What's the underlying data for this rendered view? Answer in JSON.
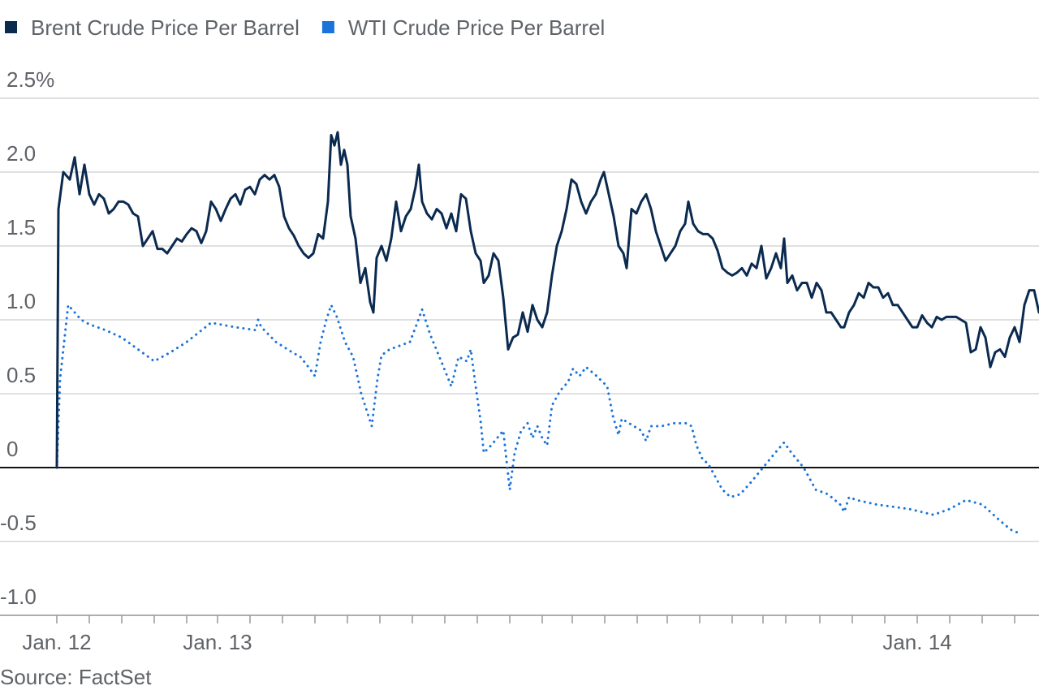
{
  "chart_data": {
    "type": "line",
    "source": "Source: FactSet",
    "grid": true,
    "legend": "top",
    "xlim": [
      70,
      1280
    ],
    "xticks": [
      {
        "value": 70,
        "label": "Jan. 12"
      },
      {
        "value": 268,
        "label": "Jan. 13"
      },
      {
        "value": 1130,
        "label": "Jan. 14"
      }
    ],
    "xminorticks": [
      110,
      150,
      190,
      230,
      308,
      348,
      388,
      428,
      468,
      508,
      548,
      588,
      628,
      668,
      705,
      745,
      785,
      822,
      862,
      902,
      940,
      968,
      1010,
      1050,
      1090,
      1170,
      1210,
      1250
    ],
    "ylim": [
      -1.0,
      2.5
    ],
    "yticks": [
      {
        "value": 2.5,
        "label": "2.5%"
      },
      {
        "value": 2.0,
        "label": "2.0"
      },
      {
        "value": 1.5,
        "label": "1.5"
      },
      {
        "value": 1.0,
        "label": "1.0"
      },
      {
        "value": 0.5,
        "label": "0.5"
      },
      0,
      {
        "value": -0.5,
        "label": "-0.5"
      },
      {
        "value": -1.0,
        "label": "-1.0"
      }
    ],
    "series": [
      {
        "name": "Brent Crude Price Per Barrel",
        "color": "#0b2a4f",
        "style": "solid",
        "x": [
          70,
          72,
          78,
          86,
          92,
          98,
          104,
          110,
          116,
          122,
          128,
          134,
          140,
          146,
          152,
          158,
          164,
          170,
          176,
          182,
          188,
          194,
          200,
          206,
          212,
          218,
          224,
          230,
          236,
          242,
          248,
          254,
          260,
          266,
          272,
          278,
          284,
          290,
          296,
          302,
          308,
          314,
          320,
          326,
          332,
          338,
          344,
          350,
          356,
          362,
          368,
          374,
          380,
          386,
          392,
          398,
          404,
          408,
          412,
          416,
          420,
          424,
          428,
          432,
          438,
          444,
          450,
          456,
          460,
          464,
          470,
          476,
          482,
          488,
          494,
          500,
          506,
          512,
          516,
          520,
          526,
          532,
          538,
          544,
          550,
          556,
          562,
          568,
          574,
          580,
          586,
          592,
          596,
          602,
          608,
          614,
          620,
          626,
          632,
          638,
          644,
          650,
          656,
          662,
          668,
          674,
          680,
          686,
          692,
          698,
          704,
          710,
          716,
          722,
          728,
          734,
          740,
          744,
          750,
          756,
          762,
          768,
          772,
          778,
          784,
          790,
          796,
          802,
          808,
          814,
          820,
          826,
          832,
          838,
          844,
          848,
          854,
          860,
          866,
          872,
          878,
          884,
          890,
          896,
          902,
          908,
          914,
          920,
          926,
          932,
          938,
          944,
          950,
          956,
          962,
          966,
          970,
          976,
          982,
          988,
          994,
          1000,
          1006,
          1012,
          1018,
          1024,
          1030,
          1036,
          1040,
          1046,
          1052,
          1058,
          1064,
          1070,
          1076,
          1082,
          1088,
          1094,
          1100,
          1106,
          1112,
          1118,
          1124,
          1130,
          1136,
          1142,
          1148,
          1154,
          1160,
          1166,
          1172,
          1178,
          1184,
          1190,
          1196,
          1202,
          1208,
          1214,
          1220,
          1226,
          1232,
          1238,
          1244,
          1250,
          1256,
          1262,
          1268,
          1274,
          1280
        ],
        "values": [
          0,
          1.75,
          2.0,
          1.95,
          2.1,
          1.85,
          2.05,
          1.85,
          1.78,
          1.85,
          1.82,
          1.72,
          1.75,
          1.8,
          1.8,
          1.78,
          1.72,
          1.7,
          1.5,
          1.55,
          1.6,
          1.48,
          1.48,
          1.45,
          1.5,
          1.55,
          1.53,
          1.58,
          1.62,
          1.6,
          1.52,
          1.6,
          1.8,
          1.75,
          1.67,
          1.75,
          1.82,
          1.85,
          1.78,
          1.88,
          1.9,
          1.85,
          1.95,
          1.98,
          1.95,
          1.98,
          1.9,
          1.7,
          1.62,
          1.57,
          1.5,
          1.45,
          1.42,
          1.45,
          1.58,
          1.55,
          1.8,
          2.25,
          2.18,
          2.27,
          2.05,
          2.15,
          2.05,
          1.7,
          1.55,
          1.25,
          1.35,
          1.12,
          1.05,
          1.42,
          1.5,
          1.4,
          1.55,
          1.8,
          1.6,
          1.7,
          1.75,
          1.9,
          2.05,
          1.8,
          1.72,
          1.68,
          1.75,
          1.72,
          1.62,
          1.72,
          1.6,
          1.85,
          1.82,
          1.6,
          1.45,
          1.4,
          1.25,
          1.3,
          1.45,
          1.4,
          1.15,
          0.8,
          0.88,
          0.9,
          1.05,
          0.92,
          1.1,
          1.0,
          0.95,
          1.05,
          1.3,
          1.5,
          1.6,
          1.75,
          1.95,
          1.92,
          1.8,
          1.72,
          1.8,
          1.85,
          1.95,
          2.0,
          1.85,
          1.7,
          1.5,
          1.45,
          1.35,
          1.75,
          1.72,
          1.8,
          1.85,
          1.75,
          1.6,
          1.5,
          1.4,
          1.45,
          1.5,
          1.6,
          1.65,
          1.8,
          1.65,
          1.6,
          1.58,
          1.58,
          1.55,
          1.47,
          1.35,
          1.32,
          1.3,
          1.32,
          1.35,
          1.3,
          1.38,
          1.35,
          1.5,
          1.28,
          1.35,
          1.45,
          1.35,
          1.55,
          1.25,
          1.3,
          1.2,
          1.25,
          1.25,
          1.15,
          1.25,
          1.2,
          1.05,
          1.05,
          1.0,
          0.95,
          0.95,
          1.05,
          1.1,
          1.18,
          1.15,
          1.25,
          1.22,
          1.22,
          1.15,
          1.18,
          1.1,
          1.1,
          1.05,
          1.0,
          0.95,
          0.95,
          1.03,
          0.98,
          0.95,
          1.02,
          1.0,
          1.02,
          1.02,
          1.02,
          1.0,
          0.98,
          0.78,
          0.8,
          0.95,
          0.88,
          0.68,
          0.78,
          0.8,
          0.75,
          0.88,
          0.95,
          0.85,
          1.1,
          1.2,
          1.2,
          1.05
        ]
      },
      {
        "name": "WTI Crude Price Per Barrel",
        "color": "#1a73d9",
        "style": "dotted",
        "x": [
          70,
          74,
          84,
          92,
          100,
          110,
          130,
          150,
          170,
          190,
          210,
          230,
          260,
          290,
          315,
          318,
          322,
          340,
          360,
          370,
          380,
          388,
          395,
          402,
          408,
          415,
          425,
          435,
          445,
          458,
          465,
          470,
          480,
          505,
          512,
          520,
          530,
          545,
          556,
          565,
          575,
          580,
          586,
          592,
          596,
          605,
          620,
          625,
          628,
          634,
          642,
          650,
          656,
          662,
          668,
          674,
          680,
          690,
          700,
          706,
          714,
          722,
          735,
          748,
          755,
          762,
          766,
          775,
          790,
          796,
          802,
          815,
          830,
          845,
          852,
          858,
          866,
          872,
          880,
          890,
          900,
          912,
          925,
          940,
          955,
          966,
          975,
          990,
          1005,
          1020,
          1035,
          1040,
          1046,
          1055,
          1080,
          1120,
          1150,
          1170,
          1190,
          1210,
          1230,
          1245,
          1258
        ],
        "values": [
          0,
          0.6,
          1.1,
          1.05,
          1.0,
          0.97,
          0.93,
          0.88,
          0.8,
          0.72,
          0.78,
          0.85,
          0.98,
          0.95,
          0.93,
          1.0,
          0.95,
          0.85,
          0.78,
          0.75,
          0.68,
          0.62,
          0.85,
          1.0,
          1.1,
          1.02,
          0.85,
          0.75,
          0.5,
          0.28,
          0.6,
          0.76,
          0.8,
          0.85,
          0.95,
          1.07,
          0.9,
          0.7,
          0.55,
          0.75,
          0.72,
          0.8,
          0.55,
          0.32,
          0.1,
          0.15,
          0.25,
          0.0,
          -0.15,
          0.1,
          0.25,
          0.3,
          0.2,
          0.28,
          0.2,
          0.15,
          0.42,
          0.52,
          0.58,
          0.67,
          0.62,
          0.68,
          0.62,
          0.55,
          0.35,
          0.22,
          0.33,
          0.3,
          0.25,
          0.18,
          0.28,
          0.28,
          0.3,
          0.3,
          0.28,
          0.15,
          0.05,
          0.03,
          -0.05,
          -0.15,
          -0.2,
          -0.18,
          -0.1,
          0.0,
          0.1,
          0.17,
          0.1,
          0.0,
          -0.15,
          -0.18,
          -0.25,
          -0.3,
          -0.2,
          -0.22,
          -0.25,
          -0.28,
          -0.32,
          -0.28,
          -0.22,
          -0.25,
          -0.35,
          -0.42,
          -0.45
        ]
      }
    ]
  }
}
